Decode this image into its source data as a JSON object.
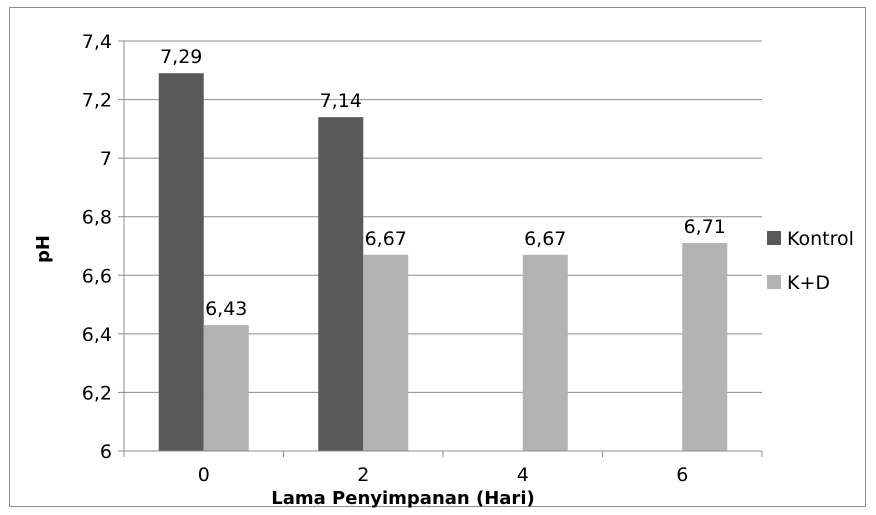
{
  "chart_data": {
    "type": "bar",
    "categories": [
      "0",
      "2",
      "4",
      "6"
    ],
    "series": [
      {
        "name": "Kontrol",
        "color": "#595959",
        "values": [
          7.29,
          7.14,
          null,
          null
        ],
        "labels": [
          "7,29",
          "7,14",
          "",
          ""
        ]
      },
      {
        "name": "K+D",
        "color": "#b3b3b3",
        "values": [
          6.43,
          6.67,
          6.67,
          6.71
        ],
        "labels": [
          "6,43",
          "6,67",
          "6,67",
          "6,71"
        ]
      }
    ],
    "xlabel": "Lama Penyimpanan (Hari)",
    "ylabel": "pH",
    "ylim": [
      6,
      7.4
    ],
    "yticks": [
      6,
      6.2,
      6.4,
      6.6,
      6.8,
      7,
      7.2,
      7.4
    ],
    "ytick_labels": [
      "6",
      "6,2",
      "6,4",
      "6,6",
      "6,8",
      "7",
      "7,2",
      "7,4"
    ],
    "grid": true,
    "legend_position": "right"
  }
}
